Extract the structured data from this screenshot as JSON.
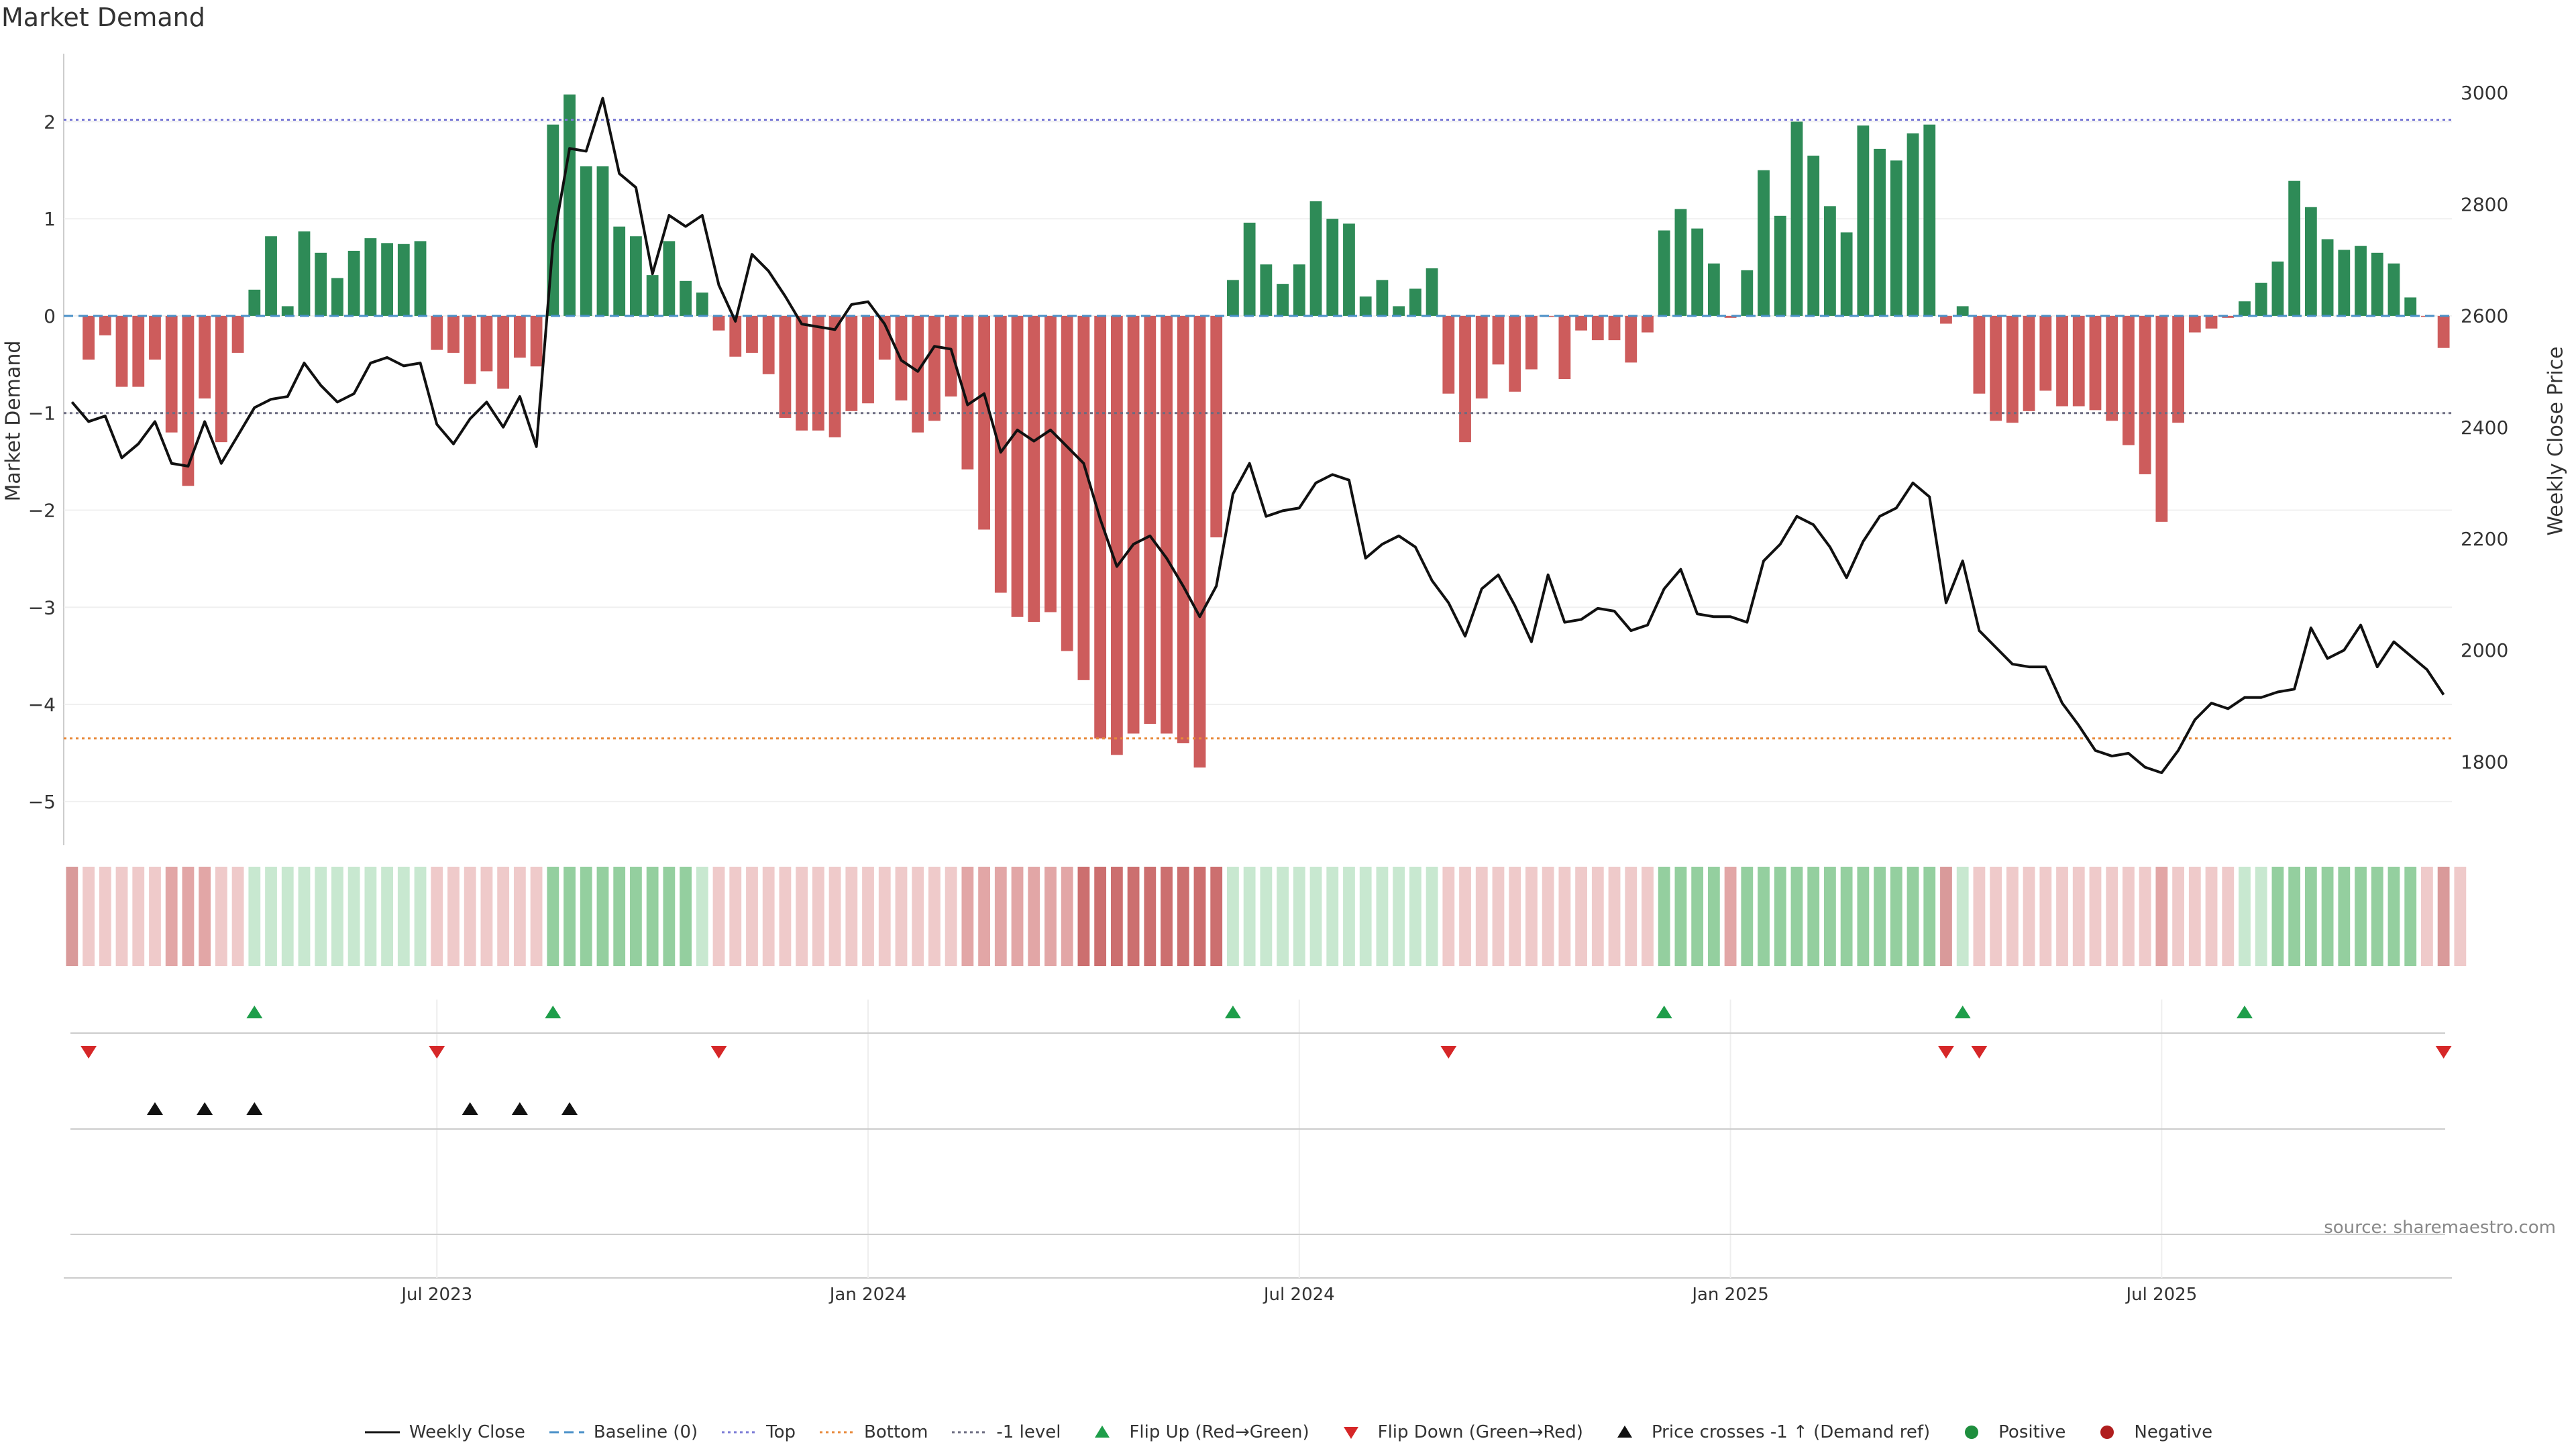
{
  "chart_data": {
    "type": "bar",
    "title": "Market Demand",
    "ylabel": "Market Demand",
    "y2label": "Weekly Close Price",
    "ylim": [
      -5.45,
      2.7
    ],
    "y2lim": [
      1650,
      3070
    ],
    "yticks": [
      2,
      1,
      0,
      -1,
      -2,
      -3,
      -4,
      -5
    ],
    "y2ticks": [
      3000,
      2800,
      2600,
      2400,
      2200,
      2000,
      1800
    ],
    "reference_lines": {
      "top": 2.02,
      "bottom": -4.35,
      "minus_one": -1,
      "baseline": 0
    },
    "x_ticks": [
      {
        "label": "Jul 2023",
        "week": 22
      },
      {
        "label": "Jan 2024",
        "week": 48
      },
      {
        "label": "Jul 2024",
        "week": 74
      },
      {
        "label": "Jan 2025",
        "week": 100
      },
      {
        "label": "Jul 2025",
        "week": 126
      }
    ],
    "series": [
      {
        "name": "Market Demand",
        "values": [
          0,
          -0.45,
          -0.2,
          -0.73,
          -0.73,
          -0.45,
          -1.2,
          -1.75,
          -0.85,
          -1.3,
          -0.38,
          0.27,
          0.82,
          0.1,
          0.87,
          0.65,
          0.39,
          0.67,
          0.8,
          0.75,
          0.74,
          0.77,
          -0.35,
          -0.38,
          -0.7,
          -0.57,
          -0.75,
          -0.43,
          -0.52,
          1.97,
          2.28,
          1.54,
          1.54,
          0.92,
          0.82,
          0.42,
          0.77,
          0.36,
          0.24,
          -0.15,
          -0.42,
          -0.38,
          -0.6,
          -1.05,
          -1.18,
          -1.18,
          -1.25,
          -0.98,
          -0.9,
          -0.45,
          -0.87,
          -1.2,
          -1.08,
          -0.83,
          -1.58,
          -2.2,
          -2.85,
          -3.1,
          -3.15,
          -3.05,
          -3.45,
          -3.75,
          -4.35,
          -4.52,
          -4.3,
          -4.2,
          -4.3,
          -4.4,
          -4.65,
          -2.28,
          0.37,
          0.96,
          0.53,
          0.33,
          0.53,
          1.18,
          1.0,
          0.95,
          0.2,
          0.37,
          0.1,
          0.28,
          0.49,
          -0.8,
          -1.3,
          -0.85,
          -0.5,
          -0.78,
          -0.55,
          -0.01,
          -0.65,
          -0.15,
          -0.25,
          -0.25,
          -0.48,
          -0.17,
          0.88,
          1.1,
          0.9,
          0.54,
          -0.02,
          0.47,
          1.5,
          1.03,
          2.0,
          1.65,
          1.13,
          0.86,
          1.96,
          1.72,
          1.6,
          1.88,
          1.97,
          -0.08,
          0.1,
          -0.8,
          -1.08,
          -1.1,
          -0.98,
          -0.77,
          -0.93,
          -0.93,
          -0.97,
          -1.08,
          -1.33,
          -1.63,
          -2.12,
          -1.1,
          -0.17,
          -0.13,
          -0.02,
          0.15,
          0.34,
          0.56,
          1.39,
          1.12,
          0.79,
          0.68,
          0.72,
          0.65,
          0.54,
          0.19,
          -0.01,
          -0.33
        ]
      },
      {
        "name": "Weekly Close",
        "axis": "right",
        "values": [
          2445,
          2410,
          2420,
          2345,
          2370,
          2410,
          2335,
          2330,
          2410,
          2335,
          2385,
          2435,
          2450,
          2455,
          2515,
          2475,
          2445,
          2460,
          2515,
          2525,
          2510,
          2515,
          2405,
          2370,
          2415,
          2445,
          2400,
          2455,
          2365,
          2730,
          2900,
          2895,
          2990,
          2855,
          2830,
          2675,
          2780,
          2760,
          2780,
          2655,
          2590,
          2710,
          2680,
          2635,
          2585,
          2580,
          2575,
          2620,
          2625,
          2585,
          2520,
          2500,
          2545,
          2540,
          2440,
          2460,
          2355,
          2395,
          2375,
          2395,
          2365,
          2335,
          2235,
          2150,
          2190,
          2205,
          2165,
          2115,
          2060,
          2115,
          2280,
          2335,
          2240,
          2250,
          2255,
          2300,
          2315,
          2305,
          2165,
          2190,
          2205,
          2185,
          2125,
          2085,
          2025,
          2110,
          2135,
          2080,
          2015,
          2135,
          2050,
          2055,
          2075,
          2070,
          2035,
          2045,
          2110,
          2145,
          2065,
          2060,
          2060,
          2050,
          2160,
          2190,
          2240,
          2225,
          2185,
          2130,
          2195,
          2240,
          2255,
          2300,
          2275,
          2085,
          2160,
          2035,
          2005,
          1975,
          1970,
          1970,
          1905,
          1865,
          1820,
          1810,
          1815,
          1790,
          1780,
          1820,
          1875,
          1905,
          1895,
          1915,
          1915,
          1925,
          1930,
          2040,
          1985,
          2000,
          2045,
          1970,
          2015,
          1990,
          1965,
          1920
        ]
      }
    ],
    "color_strip": [
      0,
      1,
      1,
      1,
      1,
      1,
      2,
      2,
      2,
      1,
      1,
      1,
      1,
      1,
      1,
      1,
      1,
      1,
      1,
      1,
      1,
      1,
      1,
      1,
      1,
      1,
      1,
      1,
      1,
      2,
      2,
      2,
      2,
      2,
      2,
      2,
      2,
      2,
      1,
      1,
      1,
      1,
      1,
      1,
      1,
      1,
      1,
      1,
      1,
      1,
      1,
      1,
      1,
      1,
      2,
      2,
      2,
      2,
      2,
      2,
      2,
      3,
      3,
      3,
      3,
      3,
      3,
      3,
      3,
      3,
      1,
      1,
      1,
      1,
      1,
      1,
      1,
      1,
      1,
      1,
      1,
      1,
      1,
      1,
      1,
      1,
      1,
      1,
      1,
      1,
      1,
      1,
      1,
      1,
      1,
      1,
      2,
      2,
      2,
      2,
      2,
      2,
      2,
      2,
      2,
      2,
      2,
      2,
      2,
      2,
      2,
      2,
      2,
      0,
      1,
      1,
      1,
      1,
      1,
      1,
      1,
      1,
      1,
      1,
      1,
      1,
      2,
      1,
      1,
      1,
      1,
      1,
      1,
      2,
      2,
      2,
      2,
      2,
      2,
      2,
      2,
      2,
      1,
      0,
      1
    ],
    "flip_up_weeks": [
      11,
      29,
      70,
      96,
      114,
      131
    ],
    "flip_down_weeks": [
      1,
      22,
      39,
      83,
      113,
      115,
      143
    ],
    "price_cross_weeks": [
      5,
      8,
      11,
      24,
      27,
      30
    ],
    "colors": {
      "positive_bar": "#2e8b57",
      "negative_bar": "#cd5c5c",
      "price_line": "#111111",
      "baseline": "#4a90c8",
      "top_line": "#7b7bd6",
      "bottom_line": "#e8893a",
      "minus_one_line": "#6b6b80",
      "flip_up": "#1e9e4a",
      "flip_down": "#d62728",
      "positive_dot": "#1e8e3e",
      "negative_dot": "#b01e1e"
    },
    "legend_position": "bottom",
    "grid": true
  },
  "labels": {
    "title": "Market Demand",
    "ylabel_left": "Market Demand",
    "ylabel_right": "Weekly Close Price",
    "source": "source: sharemaestro.com"
  },
  "legend": [
    {
      "label": "Weekly Close",
      "key": "weekly-close"
    },
    {
      "label": "Baseline (0)",
      "key": "baseline"
    },
    {
      "label": "Top",
      "key": "top"
    },
    {
      "label": "Bottom",
      "key": "bottom"
    },
    {
      "label": "-1 level",
      "key": "minus-one"
    },
    {
      "label": "Flip Up (Red→Green)",
      "key": "flip-up"
    },
    {
      "label": "Flip Down (Green→Red)",
      "key": "flip-down"
    },
    {
      "label": "Price crosses -1 ↑ (Demand ref)",
      "key": "price-cross"
    },
    {
      "label": "Positive",
      "key": "positive"
    },
    {
      "label": "Negative",
      "key": "negative"
    }
  ]
}
